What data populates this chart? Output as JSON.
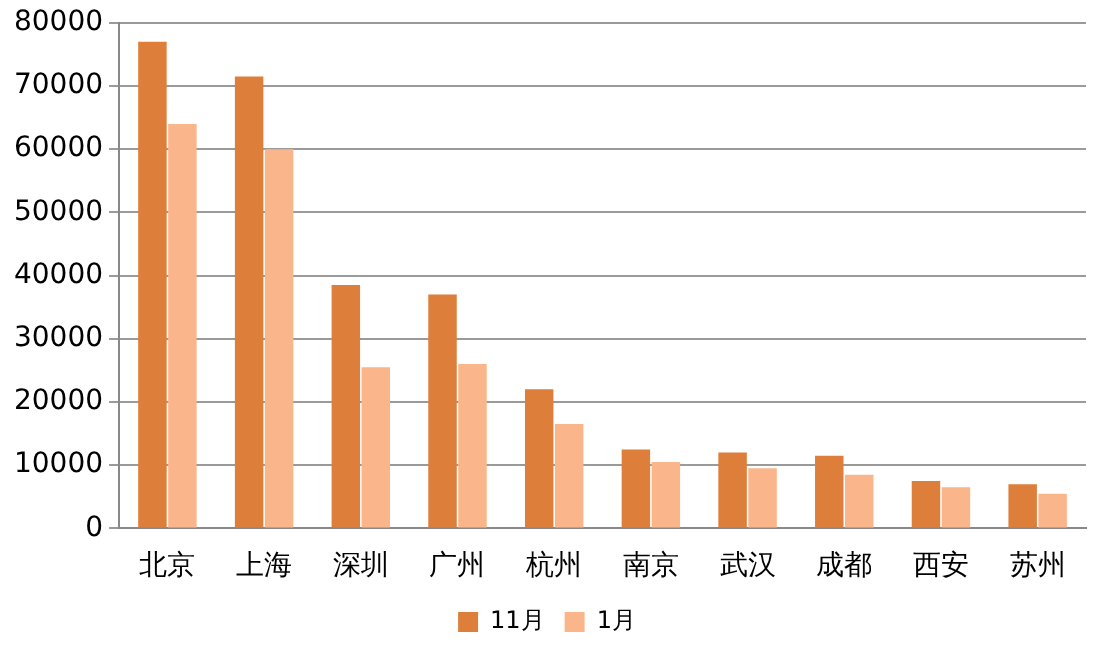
{
  "chart_data": {
    "type": "bar",
    "categories": [
      "北京",
      "上海",
      "深圳",
      "广州",
      "杭州",
      "南京",
      "武汉",
      "成都",
      "西安",
      "苏州"
    ],
    "series": [
      {
        "name": "11月",
        "color": "#dd7f3a",
        "values": [
          77000,
          71500,
          38500,
          37000,
          22000,
          12500,
          12000,
          11500,
          7500,
          7000
        ]
      },
      {
        "name": "1月",
        "color": "#fab68a",
        "values": [
          64000,
          60000,
          25500,
          26000,
          16500,
          10500,
          9500,
          8500,
          6500,
          5500
        ]
      }
    ],
    "ylim": [
      0,
      80000
    ],
    "yticks": [
      0,
      10000,
      20000,
      30000,
      40000,
      50000,
      60000,
      70000,
      80000
    ],
    "grid": "y",
    "legend": "bottom"
  }
}
